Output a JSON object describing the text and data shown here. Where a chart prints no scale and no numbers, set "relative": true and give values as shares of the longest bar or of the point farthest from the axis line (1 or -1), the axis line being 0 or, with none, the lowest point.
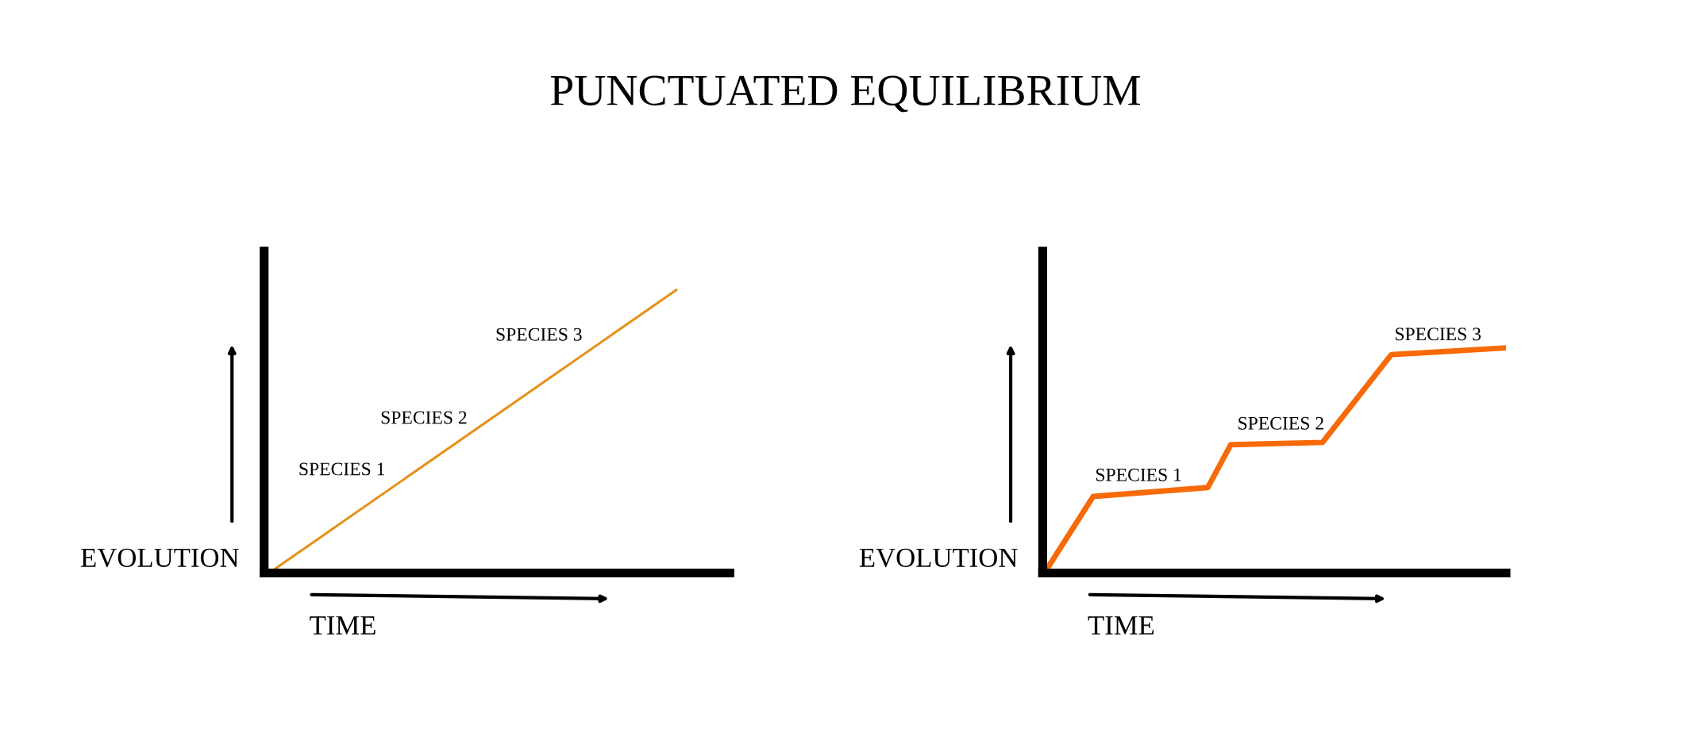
{
  "chart_data": [
    {
      "type": "line",
      "title": "PUNCTUATED EQUILIBRIUM",
      "relative": true,
      "xlabel": "TIME",
      "ylabel": "EVOLUTION",
      "categories": [
        null,
        null
      ],
      "series": [
        {
          "values": [
            0,
            1
          ],
          "color": "#e6901a"
        }
      ],
      "annotations": [
        "SPECIES 1",
        "SPECIES 2",
        "SPECIES 3"
      ]
    },
    {
      "type": "line",
      "relative": true,
      "xlabel": "TIME",
      "ylabel": "EVOLUTION",
      "categories": [
        null,
        null,
        null,
        null,
        null,
        null,
        null,
        null,
        null,
        null,
        null,
        null,
        null,
        null,
        null,
        null,
        null,
        null,
        null,
        null,
        null
      ],
      "series": [
        {
          "values": [
            0.02,
            null,
            0.34,
            null,
            null,
            null,
            null,
            0.38,
            0.57,
            null,
            null,
            null,
            0.58,
            null,
            null,
            0.97,
            null,
            null,
            null,
            null,
            1.0
          ],
          "color": "#f86a08"
        }
      ],
      "annotations": [
        "SPECIES 1",
        "SPECIES 2",
        "SPECIES 3"
      ]
    }
  ]
}
